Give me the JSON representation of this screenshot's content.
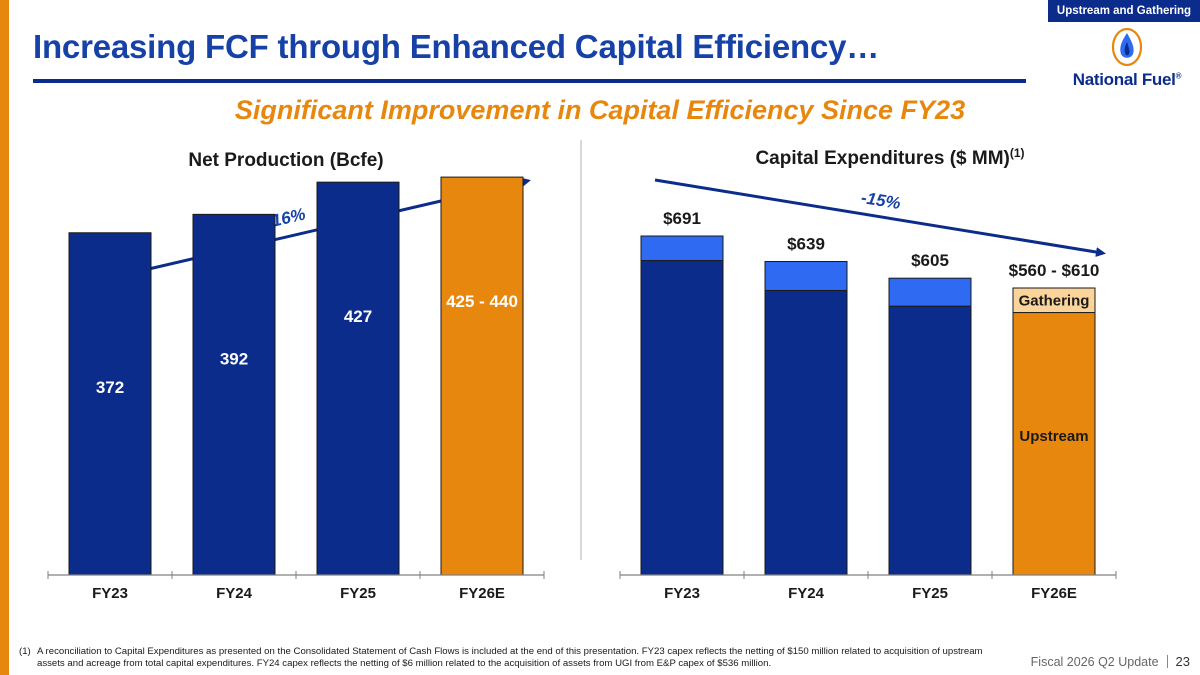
{
  "header": {
    "section_tag": "Upstream and Gathering",
    "title": "Increasing FCF through Enhanced Capital Efficiency…",
    "subtitle": "Significant Improvement in Capital Efficiency Since FY23",
    "logo_text": "National Fuel",
    "logo_mark": "®"
  },
  "colors": {
    "navy": "#0B2C8A",
    "title_blue": "#1641A6",
    "bright_blue": "#2F6BF2",
    "orange": "#E8870E",
    "light_orange": "#FAD49A"
  },
  "chart_data": [
    {
      "type": "bar",
      "title": "Net Production (Bcfe)",
      "categories": [
        "FY23",
        "FY24",
        "FY25",
        "FY26E"
      ],
      "values": [
        372,
        392,
        427,
        432.5
      ],
      "data_labels": [
        "372",
        "392",
        "427",
        "425 - 440"
      ],
      "range": {
        "FY26E": [
          425,
          440
        ]
      },
      "highlight_category": "FY26E",
      "trend": {
        "label": "+16%",
        "direction": "up"
      },
      "ylim": [
        0,
        500
      ]
    },
    {
      "type": "bar",
      "stacked": true,
      "title": "Capital Expenditures ($ MM)",
      "title_superscript": "(1)",
      "categories": [
        "FY23",
        "FY24",
        "FY25",
        "FY26E"
      ],
      "totals": [
        691,
        639,
        605,
        585
      ],
      "total_labels": [
        "$691",
        "$639",
        "$605",
        "$560 - $610"
      ],
      "series": [
        {
          "name": "Upstream",
          "values": [
            641,
            580,
            548,
            535
          ]
        },
        {
          "name": "Gathering",
          "values": [
            50,
            59,
            57,
            50
          ]
        }
      ],
      "highlight_category": "FY26E",
      "trend": {
        "label": "-15%",
        "direction": "down"
      },
      "ylim": [
        0,
        750
      ]
    }
  ],
  "footer": {
    "footnote_num": "(1)",
    "footnote_text": "A reconciliation to Capital Expenditures as presented on the Consolidated Statement of Cash Flows is included at the end of this presentation. FY23 capex reflects the netting of $150 million related to acquisition of upstream assets and acreage from total capital expenditures. FY24 capex reflects the netting of $6 million related to the acquisition of assets from UGI from E&P capex of $536 million.",
    "deck_name": "Fiscal 2026 Q2 Update",
    "page_number": "23"
  }
}
